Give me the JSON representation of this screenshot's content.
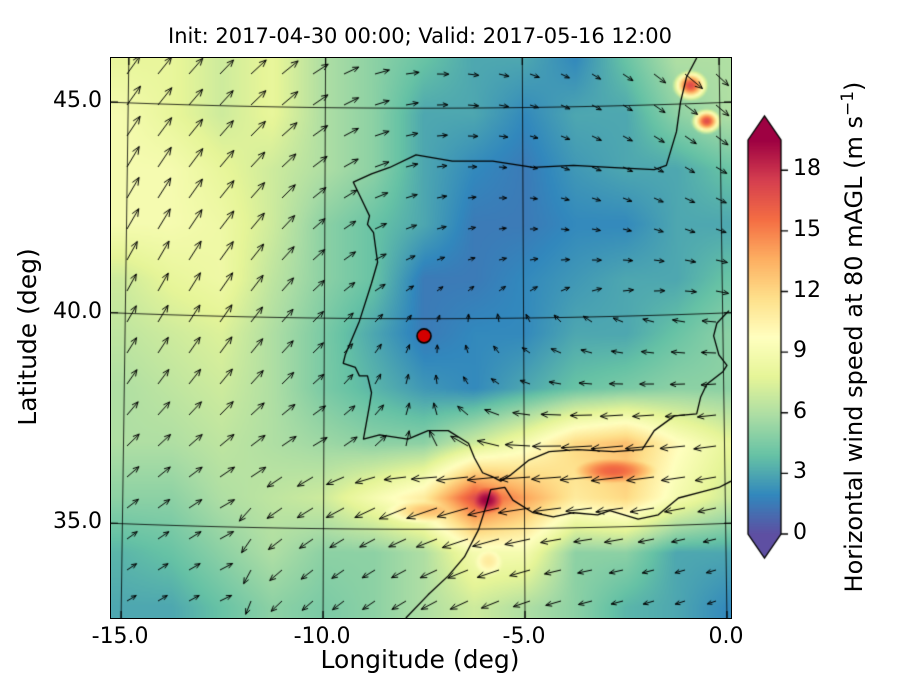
{
  "title": "Init: 2017-04-30 00:00; Valid: 2017-05-16 12:00",
  "axes": {
    "xlabel": "Longitude (deg)",
    "ylabel": "Latitude (deg)",
    "x_ticks": [
      {
        "value": -15,
        "label": "-15.0"
      },
      {
        "value": -10,
        "label": "-10.0"
      },
      {
        "value": -5,
        "label": "-5.0"
      },
      {
        "value": 0,
        "label": "0.0"
      }
    ],
    "y_ticks": [
      {
        "value": 45,
        "label": "45.0"
      },
      {
        "value": 40,
        "label": "40.0"
      },
      {
        "value": 35,
        "label": "35.0"
      }
    ]
  },
  "colorbar": {
    "label_prefix": "Horizontal wind speed at 80 mAGL (m s",
    "label_sup": "−1",
    "label_suffix": ")",
    "ticks": [
      0,
      3,
      6,
      9,
      12,
      15,
      18
    ],
    "vmin": 0,
    "vmax": 19.5,
    "extend": "both",
    "colors": [
      "#5e4fa2",
      "#3288bd",
      "#66c2a5",
      "#abdda4",
      "#e6f598",
      "#ffffbf",
      "#fee08b",
      "#fdae61",
      "#f46d43",
      "#d53e4f",
      "#9e0142"
    ]
  },
  "chart_data": {
    "type": "heatmap",
    "title": "Init: 2017-04-30 00:00; Valid: 2017-05-16 12:00",
    "xlabel": "Longitude (deg)",
    "ylabel": "Latitude (deg)",
    "value_label": "Horizontal wind speed at 80 mAGL (m/s)",
    "x_range": [
      -15.25,
      0.1
    ],
    "y_range": [
      32.75,
      46.05
    ],
    "grid_lons": [
      -15,
      -13.75,
      -12.5,
      -11.25,
      -10,
      -8.75,
      -7.5,
      -6.25,
      -5,
      -3.75,
      -2.5,
      -1.25,
      0
    ],
    "grid_lats": [
      46,
      44.7,
      43.4,
      42.1,
      40.8,
      39.5,
      38.2,
      36.9,
      35.6,
      34.3,
      33
    ],
    "wind_speed": [
      [
        8,
        8,
        7,
        8,
        6,
        5,
        4,
        3,
        3,
        2,
        4,
        6,
        6
      ],
      [
        9,
        8,
        7,
        8,
        6,
        5,
        3,
        3,
        2,
        3,
        3,
        5,
        6
      ],
      [
        9,
        9,
        8,
        7,
        6,
        5,
        3,
        2,
        1.5,
        2.5,
        3,
        3,
        4
      ],
      [
        9,
        9,
        8.5,
        7,
        5,
        4,
        3,
        1.5,
        1.5,
        2,
        2,
        3,
        3
      ],
      [
        7,
        8,
        8.5,
        6.5,
        5,
        4,
        1.5,
        1.5,
        2,
        2.5,
        3,
        3,
        4
      ],
      [
        6.5,
        7,
        7.5,
        6,
        4.5,
        3,
        1.5,
        2,
        2,
        3,
        3,
        4,
        5
      ],
      [
        6,
        6.5,
        7,
        6,
        4.5,
        3.5,
        2.5,
        2,
        3,
        4,
        4.5,
        5,
        5
      ],
      [
        6,
        6,
        6.5,
        6,
        5.5,
        5,
        5,
        7,
        9,
        12,
        13,
        10,
        8
      ],
      [
        5,
        5,
        6,
        6.5,
        7,
        9,
        11,
        17,
        14,
        11,
        12,
        9,
        7
      ],
      [
        3.5,
        4,
        5,
        6,
        5,
        5,
        6,
        9,
        9,
        5,
        5,
        3,
        3
      ],
      [
        3,
        3,
        4,
        5,
        4.5,
        5,
        6,
        7,
        6,
        5,
        3.5,
        3,
        2
      ]
    ],
    "wind_dir_deg": [
      [
        55,
        50,
        45,
        40,
        30,
        15,
        0,
        -10,
        -20,
        -30,
        -35,
        -40,
        -45
      ],
      [
        55,
        50,
        48,
        42,
        32,
        18,
        5,
        -5,
        -15,
        -25,
        -30,
        -35,
        -40
      ],
      [
        60,
        55,
        50,
        45,
        35,
        20,
        10,
        0,
        -10,
        -20,
        -25,
        -30,
        -30
      ],
      [
        60,
        58,
        52,
        48,
        38,
        25,
        15,
        10,
        0,
        -10,
        -15,
        -20,
        -20
      ],
      [
        62,
        60,
        55,
        50,
        40,
        30,
        25,
        20,
        15,
        5,
        0,
        -5,
        -10
      ],
      [
        60,
        58,
        55,
        50,
        45,
        50,
        70,
        100,
        130,
        150,
        165,
        170,
        175
      ],
      [
        55,
        52,
        50,
        45,
        40,
        60,
        90,
        130,
        160,
        175,
        180,
        182,
        185
      ],
      [
        45,
        42,
        40,
        35,
        30,
        40,
        90,
        150,
        175,
        182,
        185,
        185,
        188
      ],
      [
        38,
        36,
        30,
        215,
        210,
        205,
        200,
        195,
        188,
        186,
        188,
        190,
        192
      ],
      [
        35,
        32,
        28,
        220,
        215,
        210,
        205,
        200,
        195,
        190,
        192,
        195,
        195
      ],
      [
        30,
        30,
        25,
        225,
        220,
        215,
        210,
        205,
        200,
        195,
        195,
        198,
        200
      ]
    ],
    "hotspots": [
      {
        "lon": -5.95,
        "lat": 35.55,
        "sx": 0.55,
        "sy": 0.4,
        "peak": 19.5
      },
      {
        "lon": -7.3,
        "lat": 35.3,
        "sx": 1.3,
        "sy": 0.35,
        "peak": 13
      },
      {
        "lon": -2.8,
        "lat": 36.25,
        "sx": 1.2,
        "sy": 0.4,
        "peak": 16
      },
      {
        "lon": -0.9,
        "lat": 45.4,
        "sx": 0.3,
        "sy": 0.25,
        "peak": 17
      },
      {
        "lon": -0.5,
        "lat": 44.55,
        "sx": 0.25,
        "sy": 0.2,
        "peak": 17
      },
      {
        "lon": -5.9,
        "lat": 34.1,
        "sx": 0.5,
        "sy": 0.45,
        "peak": 11
      }
    ],
    "graticule": {
      "lons": [
        -15,
        -10,
        -5,
        0
      ],
      "lats": [
        35,
        40,
        45
      ]
    },
    "marker": {
      "lon": -7.5,
      "lat": 39.45,
      "color": "#d40000"
    },
    "basemap": {
      "segments": [
        [
          [
            -0.75,
            46.05
          ],
          [
            -1.0,
            45.6
          ],
          [
            -1.15,
            45.0
          ],
          [
            -1.25,
            44.3
          ],
          [
            -1.5,
            43.5
          ],
          [
            -1.8,
            43.4
          ],
          [
            -2.9,
            43.45
          ],
          [
            -3.8,
            43.5
          ],
          [
            -4.8,
            43.45
          ],
          [
            -5.8,
            43.6
          ],
          [
            -6.8,
            43.6
          ],
          [
            -7.7,
            43.75
          ],
          [
            -8.35,
            43.45
          ],
          [
            -8.8,
            43.3
          ],
          [
            -9.25,
            43.1
          ],
          [
            -9.0,
            42.6
          ],
          [
            -8.85,
            42.3
          ],
          [
            -8.9,
            42.1
          ],
          [
            -8.75,
            41.9
          ],
          [
            -8.65,
            41.2
          ],
          [
            -8.8,
            40.7
          ],
          [
            -9.1,
            39.8
          ],
          [
            -9.45,
            39.0
          ],
          [
            -9.5,
            38.8
          ],
          [
            -9.2,
            38.7
          ],
          [
            -9.1,
            38.5
          ],
          [
            -8.9,
            38.5
          ],
          [
            -8.8,
            38.1
          ],
          [
            -8.85,
            37.8
          ],
          [
            -9.0,
            37.0
          ],
          [
            -8.6,
            37.1
          ],
          [
            -7.9,
            37.0
          ],
          [
            -7.4,
            37.2
          ],
          [
            -6.9,
            37.2
          ],
          [
            -6.4,
            36.9
          ],
          [
            -6.25,
            36.55
          ],
          [
            -6.05,
            36.2
          ],
          [
            -5.8,
            36.1
          ],
          [
            -5.6,
            36.0
          ],
          [
            -5.35,
            36.15
          ],
          [
            -4.9,
            36.5
          ],
          [
            -4.4,
            36.7
          ],
          [
            -3.7,
            36.75
          ],
          [
            -2.8,
            36.7
          ],
          [
            -2.1,
            36.75
          ],
          [
            -1.8,
            37.2
          ],
          [
            -1.3,
            37.55
          ],
          [
            -0.75,
            37.6
          ],
          [
            -0.65,
            38.0
          ],
          [
            -0.5,
            38.3
          ],
          [
            -0.1,
            38.6
          ],
          [
            0.0,
            38.75
          ],
          [
            -0.2,
            39.0
          ],
          [
            -0.33,
            39.45
          ],
          [
            -0.25,
            39.75
          ],
          [
            0.05,
            40.05
          ]
        ],
        [
          [
            -7.95,
            32.75
          ],
          [
            -7.4,
            33.3
          ],
          [
            -6.9,
            33.75
          ],
          [
            -6.5,
            34.2
          ],
          [
            -6.15,
            34.85
          ],
          [
            -5.95,
            35.45
          ],
          [
            -5.85,
            35.8
          ],
          [
            -5.5,
            35.85
          ],
          [
            -5.3,
            35.55
          ],
          [
            -4.8,
            35.25
          ],
          [
            -4.3,
            35.15
          ],
          [
            -3.8,
            35.25
          ],
          [
            -3.2,
            35.2
          ],
          [
            -2.9,
            35.3
          ],
          [
            -2.2,
            35.1
          ],
          [
            -1.7,
            35.2
          ],
          [
            -1.2,
            35.6
          ],
          [
            -0.6,
            35.75
          ],
          [
            -0.2,
            35.85
          ],
          [
            0.1,
            36.0
          ]
        ]
      ]
    }
  }
}
